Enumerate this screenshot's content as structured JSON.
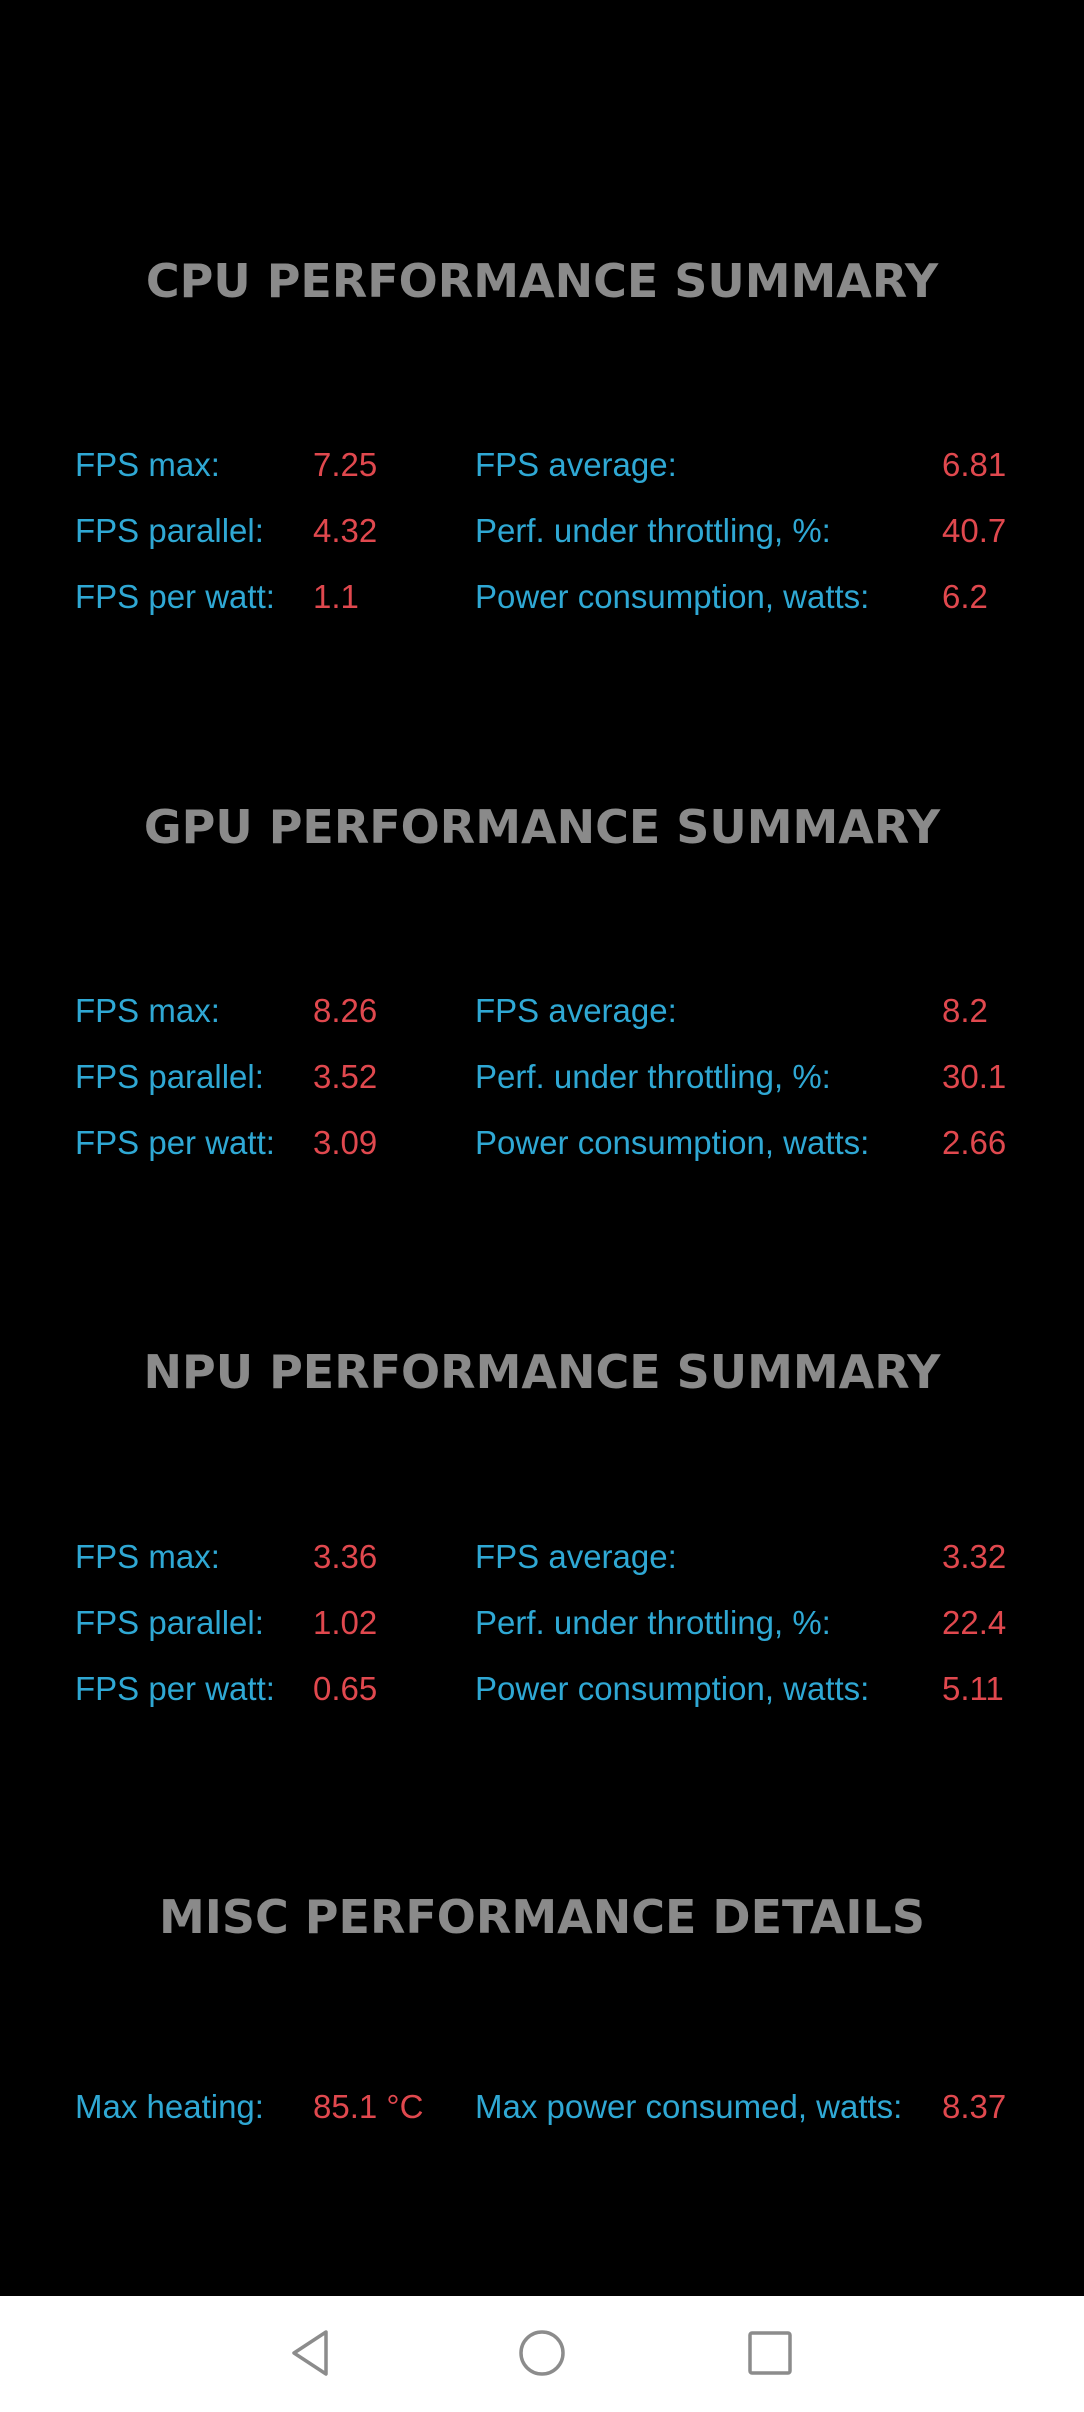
{
  "sections": [
    {
      "title": "CPU PERFORMANCE SUMMARY",
      "rows": [
        {
          "label1": "FPS max:",
          "value1": "7.25",
          "label2": "FPS average:",
          "value2": "6.81"
        },
        {
          "label1": "FPS parallel:",
          "value1": "4.32",
          "label2": "Perf. under throttling, %:",
          "value2": "40.7"
        },
        {
          "label1": "FPS per watt:",
          "value1": "1.1",
          "label2": "Power consumption, watts:",
          "value2": "6.2"
        }
      ]
    },
    {
      "title": "GPU PERFORMANCE SUMMARY",
      "rows": [
        {
          "label1": "FPS max:",
          "value1": "8.26",
          "label2": "FPS average:",
          "value2": "8.2"
        },
        {
          "label1": "FPS parallel:",
          "value1": "3.52",
          "label2": "Perf. under throttling, %:",
          "value2": "30.1"
        },
        {
          "label1": "FPS per watt:",
          "value1": "3.09",
          "label2": "Power consumption, watts:",
          "value2": "2.66"
        }
      ]
    },
    {
      "title": "NPU PERFORMANCE SUMMARY",
      "rows": [
        {
          "label1": "FPS max:",
          "value1": "3.36",
          "label2": "FPS average:",
          "value2": "3.32"
        },
        {
          "label1": "FPS parallel:",
          "value1": "1.02",
          "label2": "Perf. under throttling, %:",
          "value2": "22.4"
        },
        {
          "label1": "FPS per watt:",
          "value1": "0.65",
          "label2": "Power consumption, watts:",
          "value2": "5.11"
        }
      ]
    },
    {
      "title": "MISC PERFORMANCE DETAILS",
      "rows": [
        {
          "label1": "Max heating:",
          "value1": "85.1 °C",
          "label2": "Max power consumed, watts:",
          "value2": "8.37"
        }
      ]
    }
  ],
  "navbar": {
    "back_icon": "back-triangle-icon",
    "home_icon": "home-circle-icon",
    "recent_icon": "recents-square-icon"
  },
  "colors": {
    "background": "#000000",
    "title": "#8a8a8a",
    "label": "#2fa8d4",
    "value": "#e0484e",
    "navbar": "#ffffff"
  }
}
